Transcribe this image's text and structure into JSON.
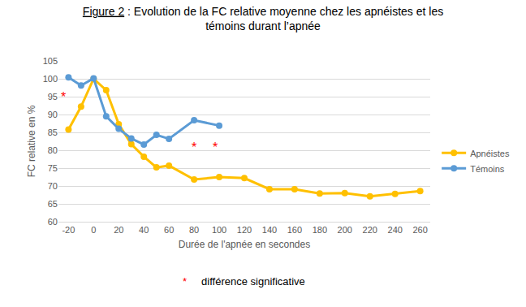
{
  "chart_data": {
    "type": "line",
    "title": "Figure 2 : Evolution de la FC relative moyenne chez les apnéistes et les témoins durant l’apnée",
    "x_label": "Durée de l'apnée en secondes",
    "y_label": "FC relative en %",
    "series": [
      {
        "name": "Apnéistes",
        "color": "#FFC000",
        "marker": "circle",
        "x": [
          -20,
          -10,
          0,
          10,
          20,
          30,
          40,
          50,
          60,
          80,
          100,
          120,
          140,
          160,
          180,
          200,
          220,
          240,
          260
        ],
        "values": [
          85.8,
          92.2,
          100,
          96.8,
          87.3,
          81.7,
          78.2,
          75.2,
          75.7,
          71.8,
          72.5,
          72.2,
          69.1,
          69.1,
          67.9,
          68,
          67.1,
          67.8,
          68.6
        ]
      },
      {
        "name": "Témoins",
        "color": "#5B9BD5",
        "marker": "circle",
        "x": [
          -20,
          -10,
          0,
          10,
          20,
          30,
          40,
          50,
          60,
          80,
          100
        ],
        "values": [
          100.4,
          98.1,
          100.1,
          89.5,
          86,
          83.3,
          81.6,
          84.3,
          83.2,
          88.4,
          86.9
        ]
      }
    ],
    "xlim": [
      -28,
      268
    ],
    "xticks": [
      -20,
      0,
      20,
      40,
      60,
      80,
      100,
      120,
      140,
      160,
      180,
      200,
      220,
      240,
      260
    ],
    "ylim": [
      60,
      105
    ],
    "yticks": [
      60,
      65,
      70,
      75,
      80,
      85,
      90,
      95,
      100,
      105
    ],
    "grid": true,
    "legend": "right",
    "annotations": [
      {
        "text": "*",
        "x": -24,
        "y": 95,
        "color": "#FF0000"
      },
      {
        "text": "*",
        "x": 80,
        "y": 80.7,
        "color": "#FF0000"
      },
      {
        "text": "*",
        "x": 97,
        "y": 80.7,
        "color": "#FF0000"
      }
    ],
    "footnote": {
      "symbol": "*",
      "text": "différence significative",
      "color": "#FF0000"
    }
  }
}
